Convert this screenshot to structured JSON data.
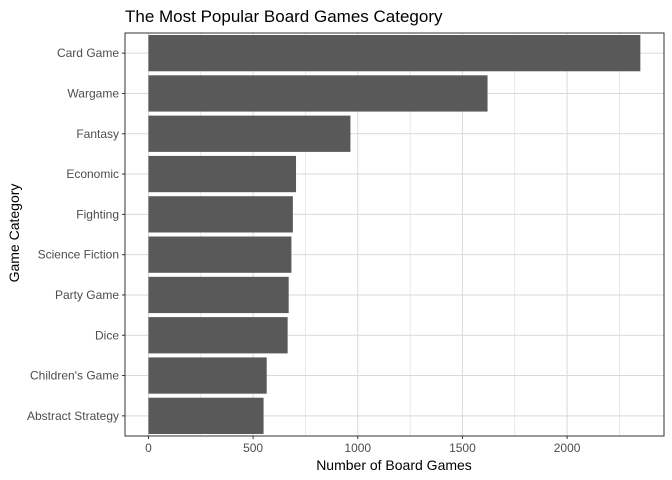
{
  "chart_data": {
    "type": "bar",
    "orientation": "horizontal",
    "title": "The Most Popular Board Games Category",
    "xlabel": "Number of Board Games",
    "ylabel": "Game Category",
    "categories": [
      "Card Game",
      "Wargame",
      "Fantasy",
      "Economic",
      "Fighting",
      "Science Fiction",
      "Party Game",
      "Dice",
      "Children's Game",
      "Abstract Strategy"
    ],
    "values": [
      2350,
      1620,
      965,
      705,
      690,
      683,
      670,
      665,
      565,
      550
    ],
    "x_ticks": [
      0,
      500,
      1000,
      1500,
      2000
    ],
    "xlim": [
      -112,
      2463
    ],
    "grid": true,
    "legend": "none",
    "colors": {
      "bar": "#595959",
      "grid": "#d9d9d9",
      "panel_border": "#333333"
    }
  }
}
